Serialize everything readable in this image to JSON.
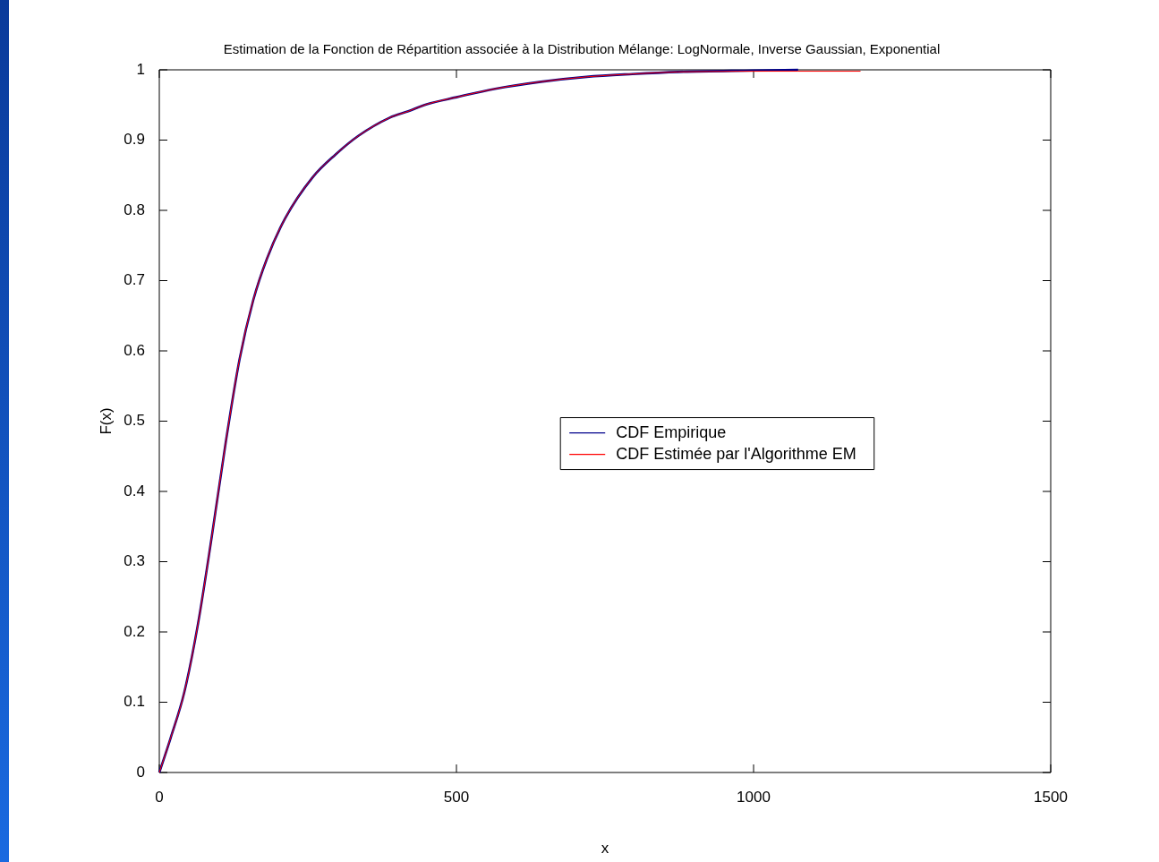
{
  "chart_data": {
    "type": "line",
    "title": "Estimation de la Fonction de Répartition associée à la Distribution Mélange: LogNormale, Inverse Gaussian, Exponential",
    "xlabel": "x",
    "ylabel": "F(x)",
    "xlim": [
      0,
      1500
    ],
    "xticks": [
      0,
      500,
      1000,
      1500
    ],
    "ylim": [
      0,
      1
    ],
    "yticks": [
      0,
      0.1,
      0.2,
      0.3,
      0.4,
      0.5,
      0.6,
      0.7,
      0.8,
      0.9,
      1
    ],
    "legend": "right",
    "line_style": "solid",
    "marker": "none",
    "series": [
      {
        "name": "CDF Empirique",
        "color": "#00008b",
        "x": [
          0,
          19,
          42,
          65,
          88,
          112,
          135,
          158,
          181,
          212,
          258,
          296,
          335,
          388,
          419,
          450,
          500,
          565,
          642,
          719,
          796,
          873,
          1000,
          1075
        ],
        "values": [
          0,
          0.049,
          0.114,
          0.211,
          0.334,
          0.471,
          0.588,
          0.672,
          0.731,
          0.789,
          0.847,
          0.879,
          0.906,
          0.932,
          0.941,
          0.951,
          0.961,
          0.973,
          0.983,
          0.99,
          0.994,
          0.997,
          0.999,
          1
        ]
      },
      {
        "name": "CDF Estimée par l'Algorithme EM",
        "color": "#ff0000",
        "x": [
          0,
          19,
          42,
          65,
          88,
          112,
          135,
          158,
          181,
          212,
          258,
          296,
          335,
          388,
          419,
          450,
          500,
          565,
          642,
          719,
          796,
          873,
          1075,
          1180
        ],
        "values": [
          0,
          0.049,
          0.114,
          0.211,
          0.334,
          0.471,
          0.588,
          0.672,
          0.731,
          0.789,
          0.847,
          0.879,
          0.906,
          0.932,
          0.941,
          0.951,
          0.961,
          0.973,
          0.983,
          0.99,
          0.994,
          0.997,
          0.998,
          0.998
        ]
      }
    ]
  }
}
